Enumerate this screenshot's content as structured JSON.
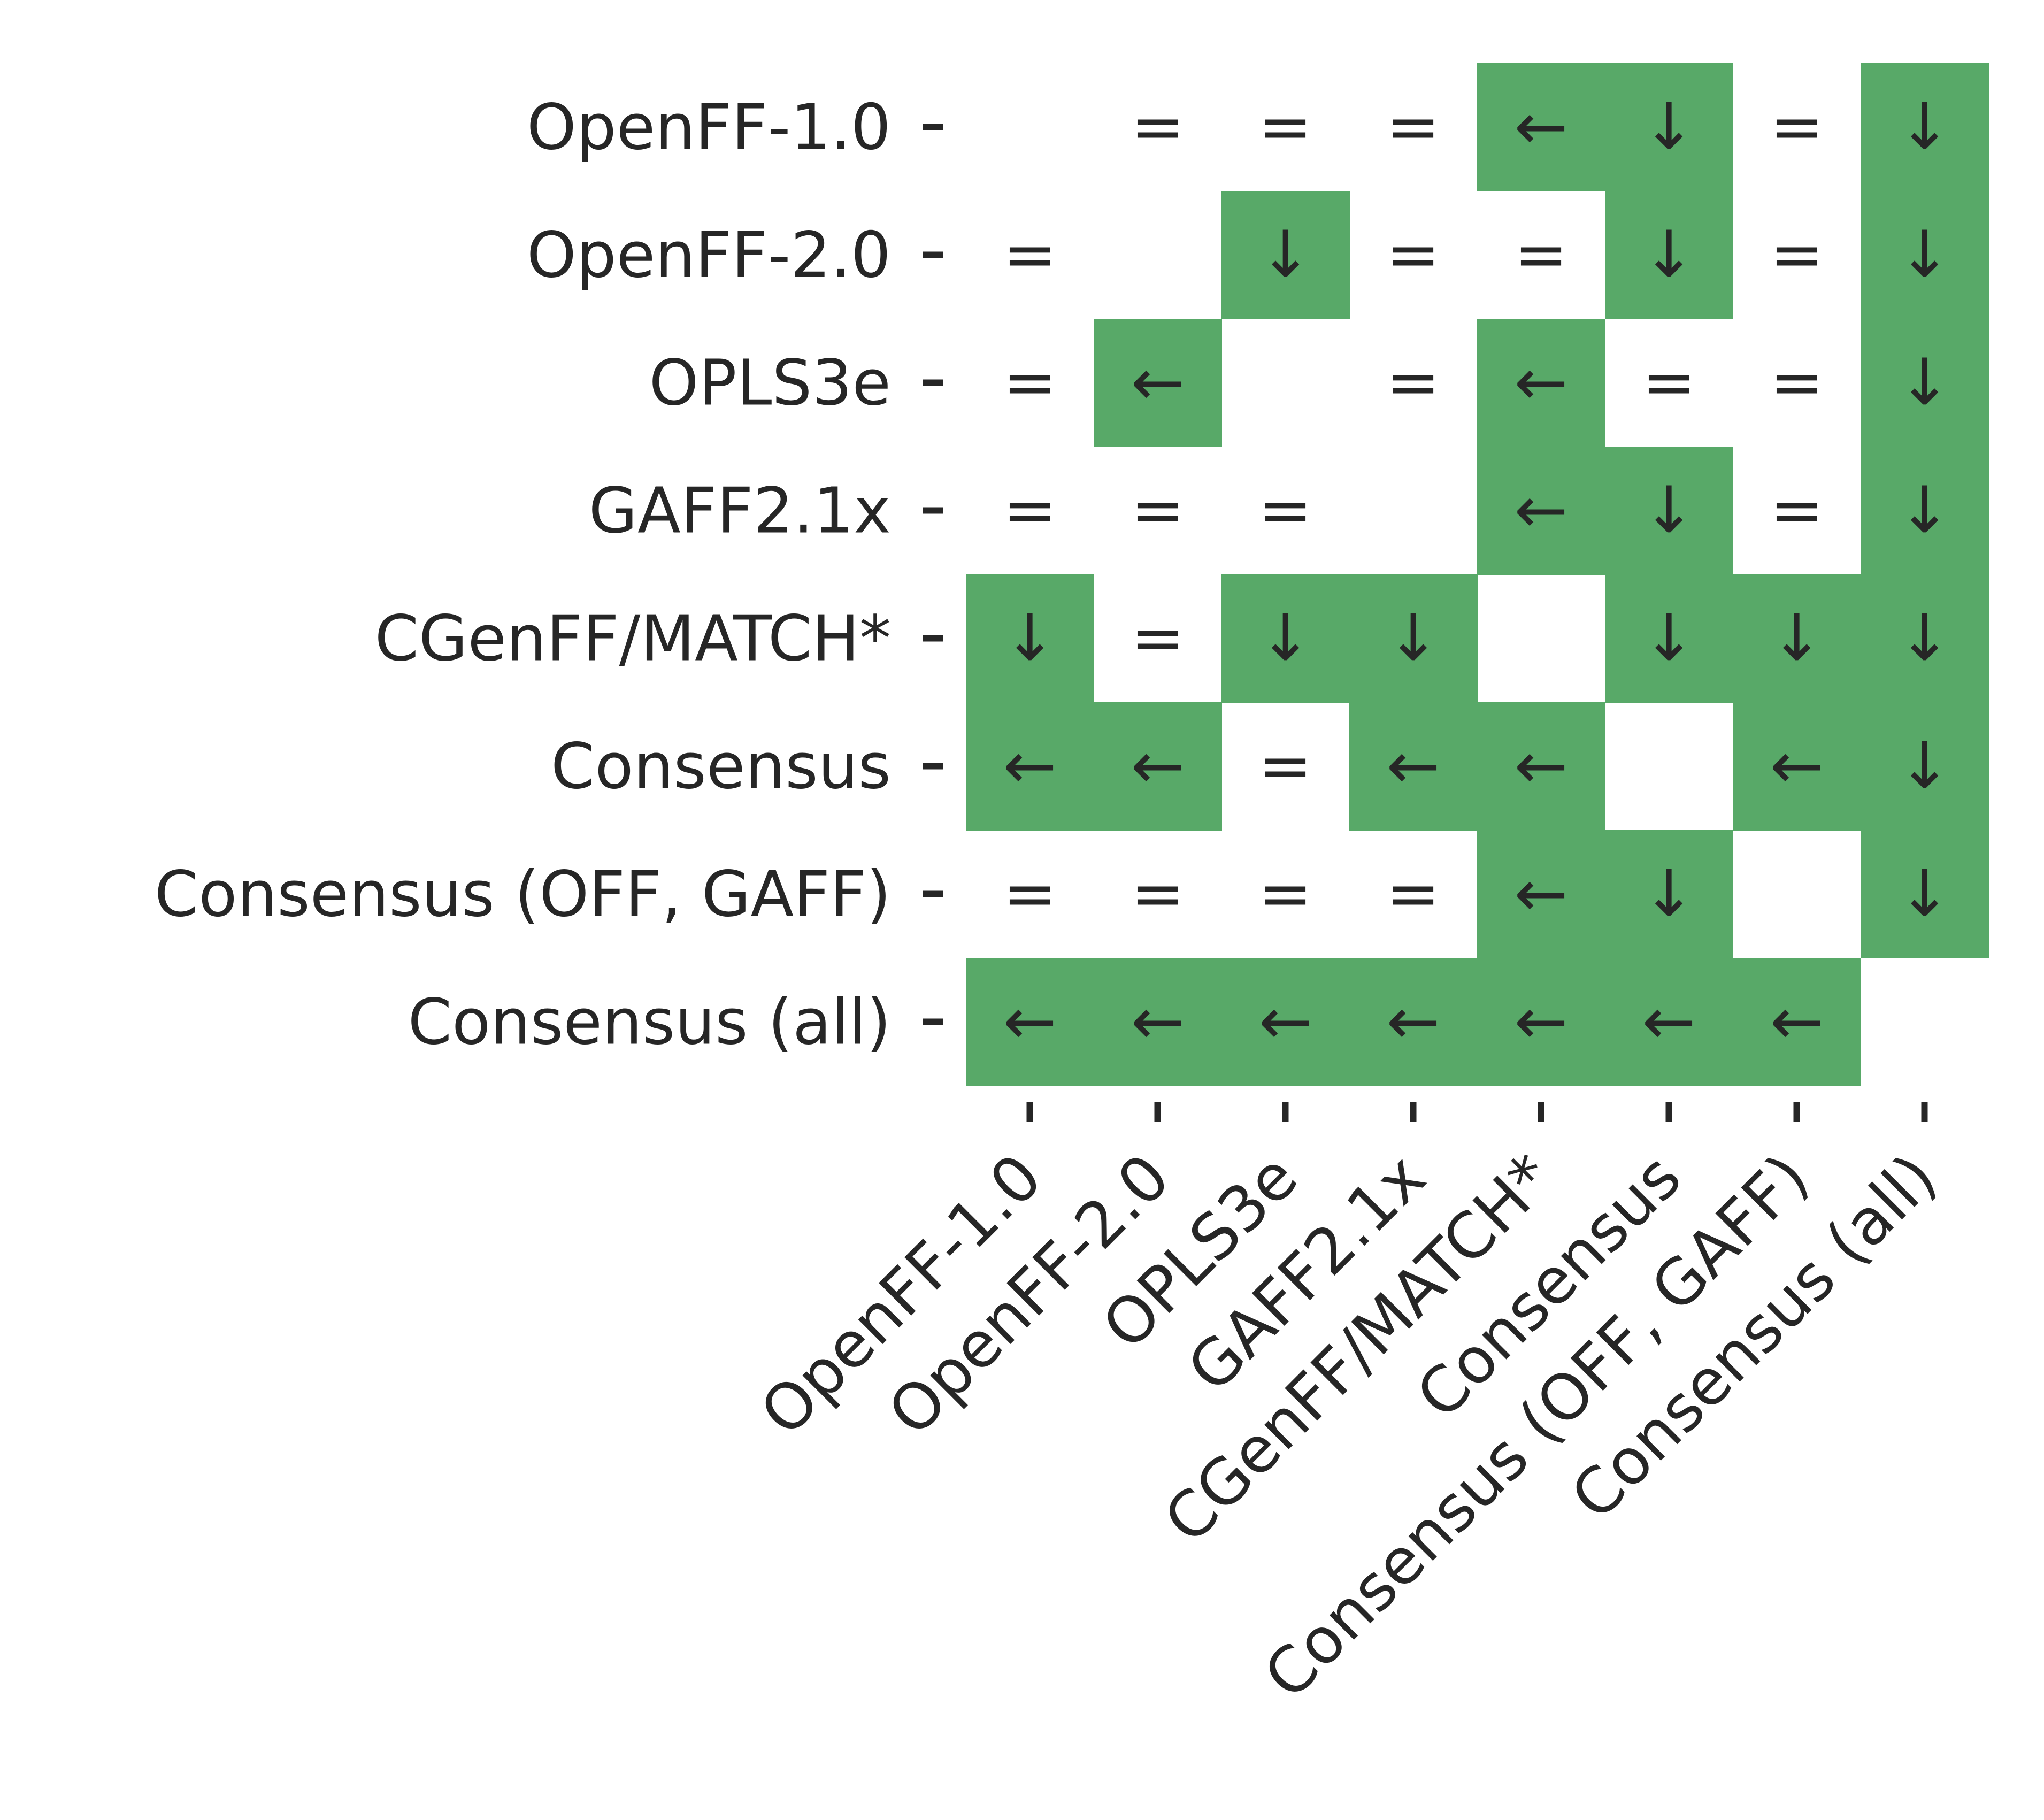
{
  "chart_data": {
    "type": "heatmap",
    "title": "",
    "xlabel": "",
    "ylabel": "",
    "highlight_color": "#58a968",
    "text_color": "#262626",
    "row_labels": [
      "OpenFF-1.0",
      "OpenFF-2.0",
      "OPLS3e",
      "GAFF2.1x",
      "CGenFF/MATCH*",
      "Consensus",
      "Consensus (OFF, GAFF)",
      "Consensus (all)"
    ],
    "col_labels": [
      "OpenFF-1.0",
      "OpenFF-2.0",
      "OPLS3e",
      "GAFF2.1x",
      "CGenFF/MATCH*",
      "Consensus",
      "Consensus (OFF, GAFF)",
      "Consensus (all)"
    ],
    "symbols": [
      [
        "",
        "=",
        "=",
        "=",
        "←",
        "↓",
        "=",
        "↓"
      ],
      [
        "=",
        "",
        "↓",
        "=",
        "=",
        "↓",
        "=",
        "↓"
      ],
      [
        "=",
        "←",
        "",
        "=",
        "←",
        "=",
        "=",
        "↓"
      ],
      [
        "=",
        "=",
        "=",
        "",
        "←",
        "↓",
        "=",
        "↓"
      ],
      [
        "↓",
        "=",
        "↓",
        "↓",
        "",
        "↓",
        "↓",
        "↓"
      ],
      [
        "←",
        "←",
        "=",
        "←",
        "←",
        "",
        "←",
        "↓"
      ],
      [
        "=",
        "=",
        "=",
        "=",
        "←",
        "↓",
        "",
        "↓"
      ],
      [
        "←",
        "←",
        "←",
        "←",
        "←",
        "←",
        "←",
        ""
      ]
    ],
    "highlighted": [
      [
        0,
        0,
        0,
        0,
        1,
        1,
        0,
        1
      ],
      [
        0,
        0,
        1,
        0,
        0,
        1,
        0,
        1
      ],
      [
        0,
        1,
        0,
        0,
        1,
        0,
        0,
        1
      ],
      [
        0,
        0,
        0,
        0,
        1,
        1,
        0,
        1
      ],
      [
        1,
        0,
        1,
        1,
        0,
        1,
        1,
        1
      ],
      [
        1,
        1,
        0,
        1,
        1,
        0,
        1,
        1
      ],
      [
        0,
        0,
        0,
        0,
        1,
        1,
        0,
        1
      ],
      [
        1,
        1,
        1,
        1,
        1,
        1,
        1,
        0
      ]
    ]
  }
}
